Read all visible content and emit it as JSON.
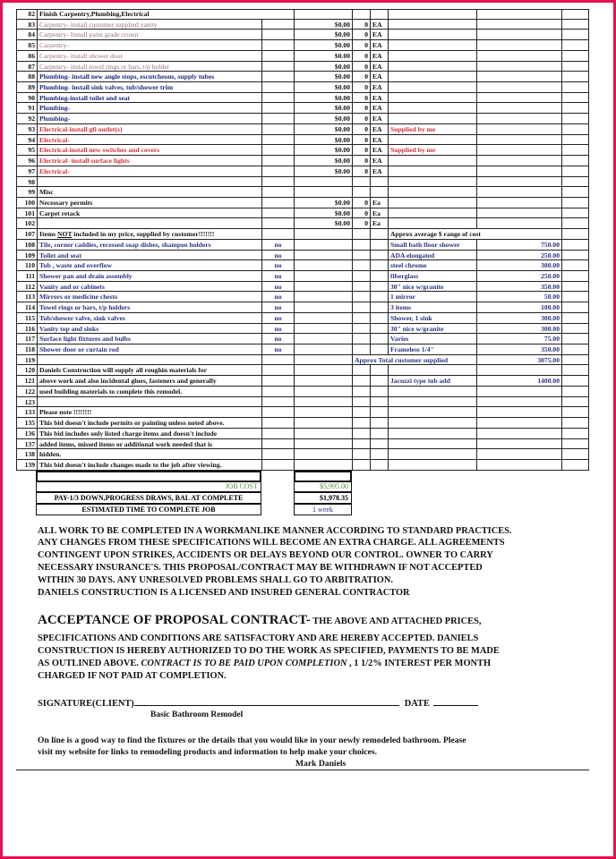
{
  "colors": {
    "border": "#e5114f",
    "carpentry": "#9a6f80",
    "plumbing": "#1e2a7a",
    "electrical": "#d0323a",
    "customer": "#2b3380",
    "job_cost": "#5a8a3a",
    "time": "#2b3380"
  },
  "rows": [
    {
      "num": "82",
      "desc": "Finish Carpentry,Plumbing,Electrical",
      "kind": "header"
    },
    {
      "num": "83",
      "desc": "Carpentry- install customer supplied vanity",
      "kind": "carp",
      "price": "$0.00",
      "qty": "0",
      "unit": "EA"
    },
    {
      "num": "84",
      "desc": "Carpentry- Install paint grade crown",
      "kind": "carp",
      "price": "$0.00",
      "qty": "0",
      "unit": "EA"
    },
    {
      "num": "85",
      "desc": "Carpentry-",
      "kind": "carp",
      "price": "$0.00",
      "qty": "0",
      "unit": "EA"
    },
    {
      "num": "86",
      "desc": "Carpentry- install shower door",
      "kind": "carp",
      "price": "$0.00",
      "qty": "0",
      "unit": "EA"
    },
    {
      "num": "87",
      "desc": "Carpentry- install towel rings or bars, t/p holder",
      "kind": "carp",
      "price": "$0.00",
      "qty": "0",
      "unit": "EA"
    },
    {
      "num": "88",
      "desc": "Plumbing- install new angle stops, escutcheons, supply tubes",
      "kind": "plumb",
      "price": "$0.00",
      "qty": "0",
      "unit": "EA"
    },
    {
      "num": "89",
      "desc": "Plumbing- install sink valves, tub/shower trim",
      "kind": "plumb",
      "price": "$0.00",
      "qty": "0",
      "unit": "EA"
    },
    {
      "num": "90",
      "desc": "Plumbing-install toilet and seat",
      "kind": "plumb",
      "price": "$0.00",
      "qty": "0",
      "unit": "EA"
    },
    {
      "num": "91",
      "desc": "Plumbing-",
      "kind": "plumb",
      "price": "$0.00",
      "qty": "0",
      "unit": "EA"
    },
    {
      "num": "92",
      "desc": "Plumbing-",
      "kind": "plumb",
      "price": "$0.00",
      "qty": "0",
      "unit": "EA"
    },
    {
      "num": "93",
      "desc": "Electrical-install gfi outlet(s)",
      "kind": "elec",
      "price": "$0.00",
      "qty": "0",
      "unit": "EA",
      "note": "Supplied by me"
    },
    {
      "num": "94",
      "desc": "Electrical-",
      "kind": "elec",
      "price": "$0.00",
      "qty": "0",
      "unit": "EA"
    },
    {
      "num": "95",
      "desc": "Electrical-install new switches and covers",
      "kind": "elec",
      "price": "$0.00",
      "qty": "0",
      "unit": "EA",
      "note": "Supplied by me"
    },
    {
      "num": "96",
      "desc": "Electrical- install surface lights",
      "kind": "elec",
      "price": "$0.00",
      "qty": "0",
      "unit": "EA"
    },
    {
      "num": "97",
      "desc": "Electrical-",
      "kind": "elec",
      "price": "$0.00",
      "qty": "0",
      "unit": "EA"
    },
    {
      "num": "98",
      "desc": ""
    },
    {
      "num": "99",
      "desc": "Misc"
    },
    {
      "num": "100",
      "desc": "Necessary permits",
      "price": "$0.00",
      "qty": "0",
      "unit": "Ea"
    },
    {
      "num": "101",
      "desc": "Carpet retack",
      "price": "$0.00",
      "qty": "0",
      "unit": "Ea"
    },
    {
      "num": "102",
      "desc": "",
      "price": "$0.00",
      "qty": "0",
      "unit": "Ea"
    },
    {
      "num": "107",
      "desc_pre": "Items ",
      "desc_u": "NOT",
      "desc": " included in my price, supplied by customer!!!!!!!",
      "note_wide": "Approx average $ range of cost"
    },
    {
      "num": "108",
      "desc": "Tile, corner caddies, recessed soap dishes, shampoo holders",
      "kind": "cust",
      "no": "no",
      "note": "Small bath floor shower",
      "amount": "750.00"
    },
    {
      "num": "109",
      "desc": "Toilet and seat",
      "kind": "cust",
      "no": "no",
      "note": "ADA elongated",
      "amount": "250.00"
    },
    {
      "num": "110",
      "desc": "Tub , waste and overflow",
      "kind": "cust",
      "no": "no",
      "note": "steel chrome",
      "amount": "300.00"
    },
    {
      "num": "111",
      "desc": "Shower pan and drain assembly",
      "kind": "cust",
      "no": "no",
      "note": "fiberglass",
      "amount": "250.00"
    },
    {
      "num": "112",
      "desc": "Vanity and or cabinets",
      "kind": "cust",
      "no": "no",
      "note": "30\" nice w/granite",
      "amount": "350.00"
    },
    {
      "num": "113",
      "desc": "Mirrors or medicine chests",
      "kind": "cust",
      "no": "no",
      "note": "1 mirror",
      "amount": "50.00"
    },
    {
      "num": "114",
      "desc": "Towel rings or bars, t/p holders",
      "kind": "cust",
      "no": "no",
      "note": "3 items",
      "amount": "100.00"
    },
    {
      "num": "115",
      "desc": "Tub/shower valve, sink valves",
      "kind": "cust",
      "no": "no",
      "note": "Shower, 1 sink",
      "amount": "300.00"
    },
    {
      "num": "116",
      "desc": "Vanity top and sinks",
      "kind": "cust",
      "no": "no",
      "note": "30\" nice w/granite",
      "amount": "300.00"
    },
    {
      "num": "117",
      "desc": "Surface light fixtures and bulbs",
      "kind": "cust",
      "no": "no",
      "note": "Varies",
      "amount": "75.00"
    },
    {
      "num": "118",
      "desc": "Shower door or curtain rod",
      "kind": "cust",
      "no": "no",
      "note": "Frameless 1/4\"",
      "amount": "350.00"
    },
    {
      "num": "119",
      "desc": "",
      "total_label": "Approx Total customer supplied",
      "amount": "3075.00",
      "kind_amount": "cust"
    },
    {
      "num": "120",
      "desc": "Daniels Construction will supply all roughin materials for"
    },
    {
      "num": "121",
      "desc": "above work and also incidental glues, fasteners and generally",
      "note": "Jacuzzi type tub add",
      "amount": "1400.00",
      "kind_amount": "cust"
    },
    {
      "num": "122",
      "desc": "used building materials to complete this remodel."
    },
    {
      "num": "123",
      "desc": ""
    },
    {
      "num": "133",
      "desc": "Please note     !!!!!!!!"
    },
    {
      "num": "135",
      "desc": "This bid doesn't include permits or painting unless noted above."
    },
    {
      "num": "136",
      "desc": "This bid includes only listed charge items and doesn't include"
    },
    {
      "num": "137",
      "desc": "added items, missed items or additional work needed that is"
    },
    {
      "num": "138",
      "desc": "hidden."
    },
    {
      "num": "139",
      "desc": "This bid doesn't include changes made to the job after viewing."
    }
  ],
  "summary": {
    "job_cost_label": "JOB COST",
    "job_cost_value": "$5,995.00",
    "pay_label": "PAY-1/3 DOWN,PROGRESS DRAWS, BAL  AT COMPLETE",
    "pay_value": "$1,978.35",
    "time_label": "ESTIMATED TIME TO COMPLETE JOB",
    "time_value": "1 week"
  },
  "terms": [
    "ALL WORK TO BE COMPLETED IN A WORKMANLIKE MANNER ACCORDING TO STANDARD PRACTICES.",
    "ANY CHANGES FROM THESE SPECIFICATIONS WILL BECOME AN EXTRA CHARGE. ALL AGREEMENTS",
    "CONTINGENT UPON STRIKES, ACCIDENTS OR DELAYS BEYOND OUR CONTROL. OWNER TO CARRY",
    "NECESSARY INSURANCE'S. THIS PROPOSAL/CONTRACT MAY BE WITHDRAWN IF NOT ACCEPTED",
    "WITHIN 30 DAYS. ANY UNRESOLVED PROBLEMS SHALL GO TO ARBITRATION.",
    "DANIELS CONSTRUCTION IS A LICENSED  AND INSURED GENERAL CONTRACTOR"
  ],
  "acceptance": {
    "title": "ACCEPTANCE OF PROPOSAL CONTRACT-",
    "title_tail": " THE ABOVE AND ATTACHED PRICES,",
    "line2": "SPECIFICATIONS  AND CONDITIONS ARE SATISFACTORY AND ARE HEREBY ACCEPTED.  DANIELS",
    "line3": "CONSTRUCTION IS HEREBY AUTHORIZED TO DO THE WORK AS SPECIFIED, PAYMENTS TO BE MADE",
    "line4_pre": "AS OUTLINED ABOVE. ",
    "line4_italic": "CONTRACT IS TO BE PAID UPON COMPLETION",
    "line4_post": " , 1 1/2% INTEREST PER MONTH",
    "line5": "CHARGED IF NOT PAID AT COMPLETION."
  },
  "signature": {
    "client_label": "SIGNATURE(CLIENT)",
    "date_label": "DATE",
    "subtitle": "Basic Bathroom Remodel"
  },
  "footer": {
    "line1": "On line is a good way to find the fixtures or the details that you would like in your newly remodeled bathroom. Please",
    "line2": "visit my website for links to remodeling products and information to help make your choices.",
    "author": "Mark Daniels"
  }
}
